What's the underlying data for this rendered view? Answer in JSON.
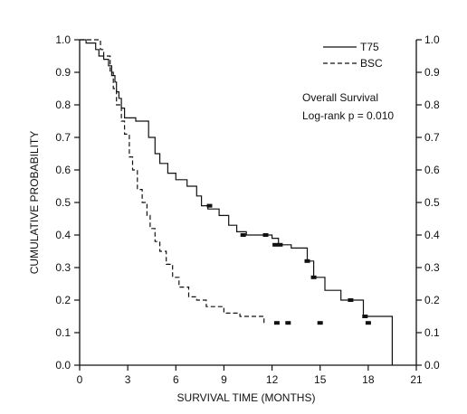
{
  "chart_data": {
    "type": "line",
    "title": "",
    "xlabel": "SURVIVAL TIME (MONTHS)",
    "ylabel": "CUMULATIVE PROBABILITY",
    "xlim": [
      0,
      21
    ],
    "ylim": [
      0,
      1
    ],
    "x_ticks": [
      0,
      3,
      6,
      9,
      12,
      15,
      18,
      21
    ],
    "x_tick_labels": [
      "0",
      "3",
      "6",
      "9",
      "12",
      "15",
      "18",
      "21"
    ],
    "y_ticks": [
      0,
      0.1,
      0.2,
      0.3,
      0.4,
      0.5,
      0.6,
      0.7,
      0.8,
      0.9,
      1.0
    ],
    "y_tick_labels": [
      "0.0",
      "0.1",
      "0.2",
      "0.3",
      "0.4",
      "0.5",
      "0.6",
      "0.7",
      "0.8",
      "0.9",
      "1.0"
    ],
    "right_axis_mirrored": true,
    "grid": false,
    "legend_position": "top-right",
    "annotations": [
      "Overall Survival",
      "Log-rank p = 0.010"
    ],
    "series": [
      {
        "name": "T75",
        "style": "solid",
        "color": "#111111",
        "x": [
          0,
          0.4,
          1.0,
          1.2,
          1.5,
          1.8,
          2.0,
          2.2,
          2.3,
          2.45,
          2.6,
          2.8,
          3.0,
          3.5,
          4.3,
          4.7,
          5.0,
          5.5,
          6.0,
          6.7,
          7.3,
          7.6,
          8.0,
          8.7,
          9.3,
          9.8,
          10.4,
          12.0,
          12.4,
          13.2,
          14.2,
          14.6,
          15.3,
          16.3,
          17.7,
          19.5
        ],
        "y": [
          1.0,
          0.99,
          0.97,
          0.95,
          0.94,
          0.92,
          0.89,
          0.87,
          0.84,
          0.82,
          0.79,
          0.76,
          0.76,
          0.75,
          0.7,
          0.65,
          0.62,
          0.59,
          0.57,
          0.55,
          0.52,
          0.49,
          0.48,
          0.46,
          0.43,
          0.41,
          0.4,
          0.39,
          0.37,
          0.36,
          0.32,
          0.27,
          0.23,
          0.2,
          0.15,
          0.0
        ],
        "censored": [
          {
            "x": 8.1,
            "y": 0.49
          },
          {
            "x": 10.2,
            "y": 0.4
          },
          {
            "x": 11.6,
            "y": 0.4
          },
          {
            "x": 12.2,
            "y": 0.37
          },
          {
            "x": 12.5,
            "y": 0.37
          },
          {
            "x": 14.2,
            "y": 0.32
          },
          {
            "x": 14.6,
            "y": 0.27
          },
          {
            "x": 16.9,
            "y": 0.2
          },
          {
            "x": 17.8,
            "y": 0.15
          }
        ]
      },
      {
        "name": "BSC",
        "style": "dashed",
        "color": "#111111",
        "x": [
          0,
          1.3,
          1.5,
          1.9,
          2.1,
          2.3,
          2.6,
          2.8,
          3.1,
          3.3,
          3.6,
          3.9,
          4.2,
          4.4,
          4.7,
          5.0,
          5.4,
          5.8,
          6.2,
          6.8,
          7.3,
          7.9,
          9.0,
          10.0,
          11.5
        ],
        "y": [
          1.0,
          0.97,
          0.95,
          0.9,
          0.85,
          0.8,
          0.75,
          0.71,
          0.64,
          0.6,
          0.54,
          0.5,
          0.46,
          0.42,
          0.38,
          0.35,
          0.31,
          0.27,
          0.24,
          0.21,
          0.2,
          0.18,
          0.16,
          0.15,
          0.13
        ],
        "censored": [
          {
            "x": 12.3,
            "y": 0.13
          },
          {
            "x": 13.0,
            "y": 0.13
          },
          {
            "x": 15.0,
            "y": 0.13
          },
          {
            "x": 18.0,
            "y": 0.13
          }
        ]
      }
    ]
  }
}
